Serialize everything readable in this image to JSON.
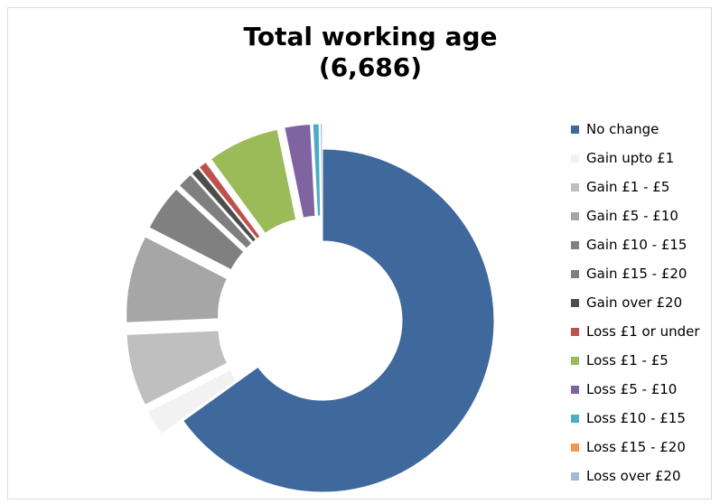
{
  "chart_data": {
    "type": "donut",
    "title": "Total working age",
    "subtitle": "(6,686)",
    "legend_position": "right",
    "categories": [
      "No change",
      "Gain upto £1",
      "Gain £1 - £5",
      "Gain £5 - £10",
      "Gain £10 - £15",
      "Gain £15 - £20",
      "Gain over £20",
      "Loss £1 or under",
      "Loss £1 - £5",
      "Loss £5 - £10",
      "Loss £10 - £15",
      "Loss £15 - £20",
      "Loss over £20"
    ],
    "values_percent": [
      67.0,
      2.5,
      7.0,
      8.5,
      4.5,
      1.5,
      0.8,
      0.8,
      7.0,
      2.5,
      0.6,
      0.05,
      0.2
    ],
    "colors": [
      "#3f689c",
      "#f2f2f2",
      "#bfbfbf",
      "#a6a6a6",
      "#808080",
      "#7f7f7f",
      "#4d4d4d",
      "#c0504d",
      "#9bbb59",
      "#8064a2",
      "#4bacc6",
      "#f79646",
      "#a6b9d8"
    ],
    "exploded": true
  }
}
